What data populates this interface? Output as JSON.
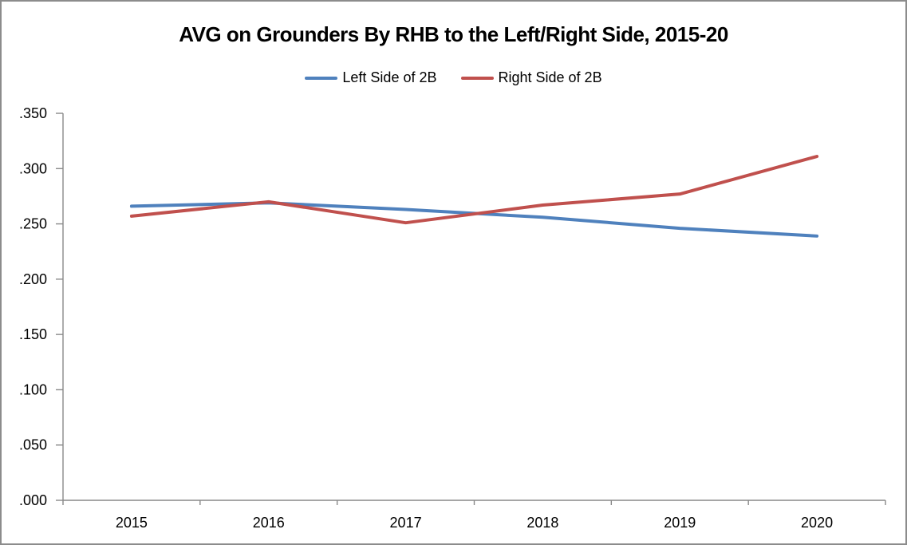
{
  "window": {
    "background_color": "#FFFFFF",
    "border_color": "#8C8C8C"
  },
  "chart_data": {
    "type": "line",
    "title": "AVG on Grounders By RHB to the Left/Right Side, 2015-20",
    "categories": [
      "2015",
      "2016",
      "2017",
      "2018",
      "2019",
      "2020"
    ],
    "series": [
      {
        "name": "Left Side of 2B",
        "color": "#4F81BD",
        "values": [
          0.266,
          0.269,
          0.263,
          0.256,
          0.246,
          0.239
        ]
      },
      {
        "name": "Right Side of 2B",
        "color": "#C0504D",
        "values": [
          0.257,
          0.27,
          0.251,
          0.267,
          0.277,
          0.311
        ]
      }
    ],
    "y_axis": {
      "min": 0.0,
      "max": 0.35,
      "step": 0.05,
      "tick_labels": [
        ".350",
        ".300",
        ".250",
        ".200",
        ".150",
        ".100",
        ".050",
        ".000"
      ]
    },
    "x_axis_label": "",
    "y_axis_label": "",
    "legend_position": "top",
    "grid": false,
    "axis_color": "#898989",
    "text_color": "#000000",
    "line_width": 4
  }
}
